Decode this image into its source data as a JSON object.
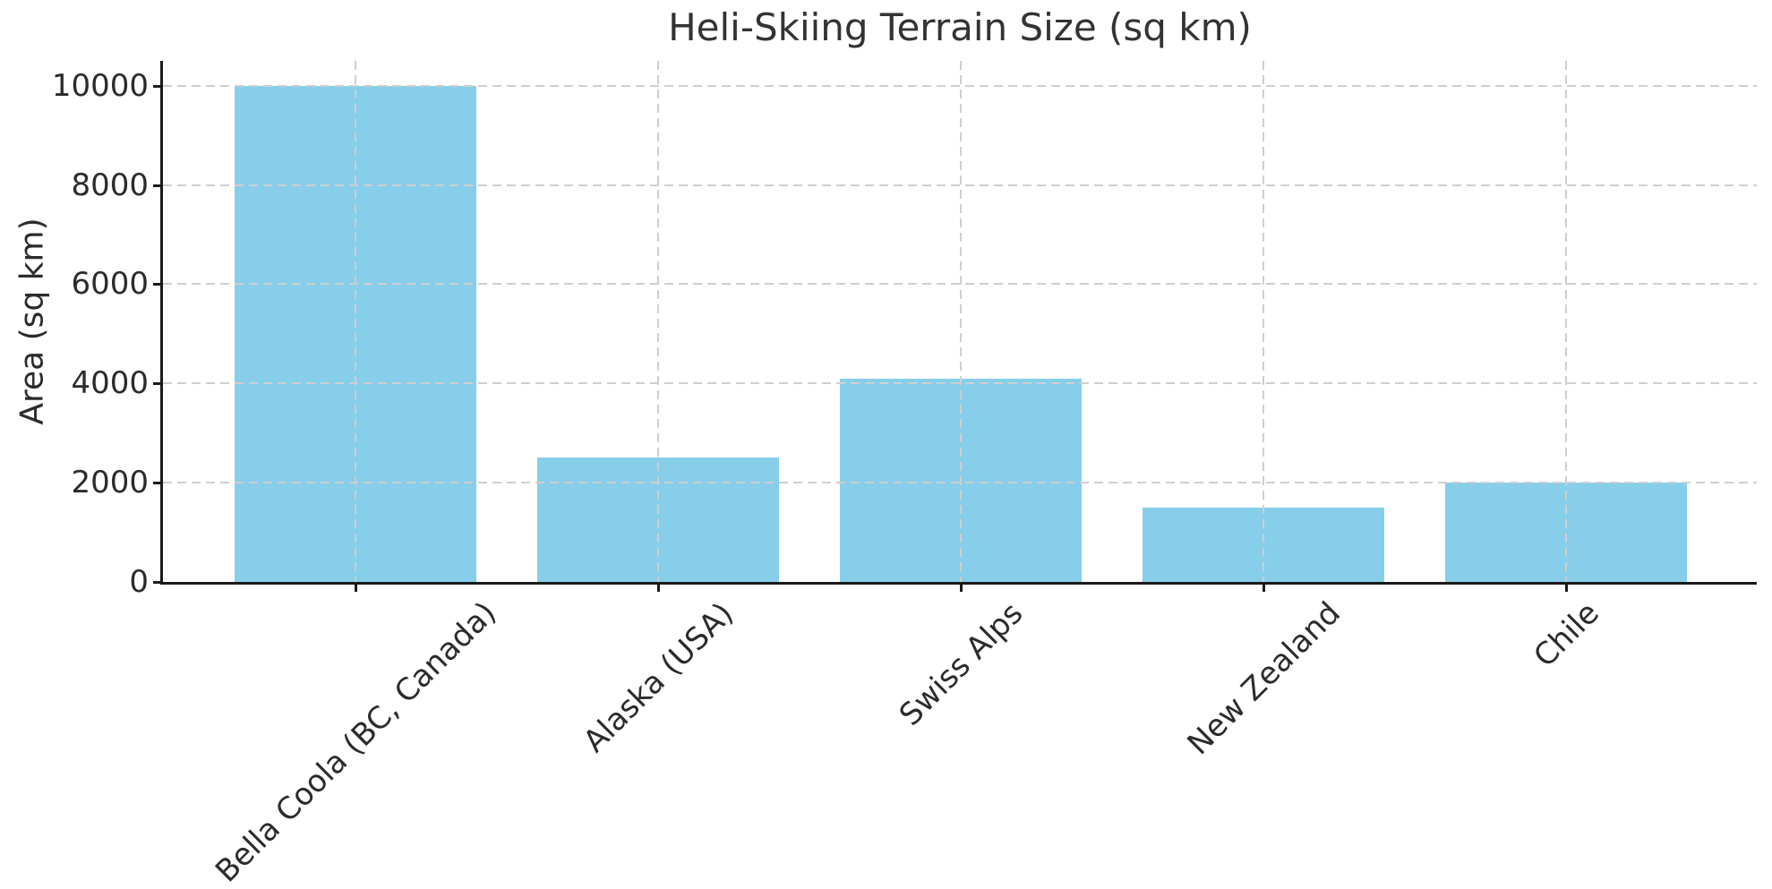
{
  "chart_data": {
    "type": "bar",
    "title": "Heli-Skiing Terrain Size (sq km)",
    "ylabel": "Area (sq km)",
    "xlabel": "",
    "categories": [
      "Bella Coola (BC, Canada)",
      "Alaska (USA)",
      "Swiss Alps",
      "New Zealand",
      "Chile"
    ],
    "values": [
      10000,
      2500,
      4100,
      1500,
      2000
    ],
    "yticks": [
      0,
      2000,
      4000,
      6000,
      8000,
      10000
    ],
    "ylim": [
      0,
      10500
    ],
    "grid": "dashed-both-axes-above-bars",
    "legend": "none",
    "xtick_rotation": 45,
    "colors": {
      "bar": "#87CEEB",
      "grid": "#cfcfcf",
      "spine": "#1a1a1a",
      "text": "#2b2b2b",
      "title": "#333333"
    }
  }
}
